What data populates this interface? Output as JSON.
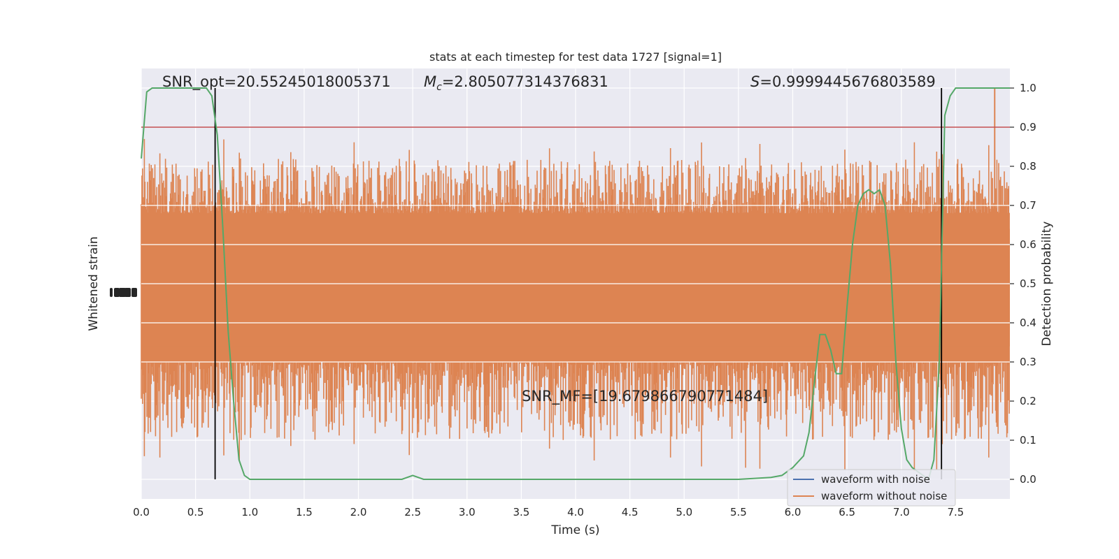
{
  "chart_data": {
    "type": "line",
    "title": "stats at each timestep for test data 1727 [signal=1]",
    "xlabel": "Time (s)",
    "ylabel_left": "Whitened strain",
    "ylabel_right": "Detection probability",
    "xlim": [
      0,
      8
    ],
    "ylim_right": [
      -0.05,
      1.05
    ],
    "x_ticks": [
      "0.0",
      "0.5",
      "1.0",
      "1.5",
      "2.0",
      "2.5",
      "3.0",
      "3.5",
      "4.0",
      "4.5",
      "5.0",
      "5.5",
      "6.0",
      "6.5",
      "7.0",
      "7.5"
    ],
    "y_ticks_right": [
      "0.0",
      "0.1",
      "0.2",
      "0.3",
      "0.4",
      "0.5",
      "0.6",
      "0.7",
      "0.8",
      "0.9",
      "1.0"
    ],
    "grid": true,
    "threshold": 0.9,
    "vlines": [
      0.68,
      7.37
    ],
    "annotations": {
      "snr_opt": "SNR_opt=20.55245018005371",
      "mc_prefix": "M",
      "mc_sub": "c",
      "mc_value": "=2.805077314376831",
      "s_prefix": "S",
      "s_value": "=0.9999445676803589",
      "snr_mf": "SNR_MF=[19.679866790771484]"
    },
    "series": [
      {
        "name": "waveform with noise",
        "color": "#4c72b0",
        "y_range": [
          -0.03,
          0.03
        ]
      },
      {
        "name": "waveform without noise",
        "color": "#dd8452",
        "band_center": 0.47,
        "band_inner": [
          0.3,
          0.68
        ],
        "band_outer": [
          0.1,
          0.82
        ]
      },
      {
        "name": "detection probability",
        "color": "#55a868",
        "x": [
          0.0,
          0.05,
          0.1,
          0.15,
          0.2,
          0.3,
          0.4,
          0.5,
          0.55,
          0.6,
          0.65,
          0.7,
          0.75,
          0.8,
          0.85,
          0.9,
          0.95,
          1.0,
          1.2,
          1.5,
          2.0,
          2.3,
          2.4,
          2.5,
          2.6,
          3.0,
          3.5,
          4.0,
          4.5,
          5.0,
          5.5,
          5.8,
          5.9,
          6.0,
          6.1,
          6.15,
          6.2,
          6.25,
          6.3,
          6.35,
          6.4,
          6.45,
          6.5,
          6.55,
          6.6,
          6.65,
          6.7,
          6.75,
          6.8,
          6.85,
          6.9,
          6.95,
          7.0,
          7.05,
          7.1,
          7.15,
          7.2,
          7.25,
          7.3,
          7.35,
          7.4,
          7.45,
          7.5,
          7.6,
          7.7,
          7.8,
          7.9,
          8.0
        ],
        "y": [
          0.82,
          0.99,
          1.0,
          1.0,
          1.0,
          1.0,
          1.0,
          1.0,
          1.0,
          1.0,
          0.98,
          0.88,
          0.65,
          0.38,
          0.2,
          0.05,
          0.01,
          0.0,
          0.0,
          0.0,
          0.0,
          0.0,
          0.0,
          0.01,
          0.0,
          0.0,
          0.0,
          0.0,
          0.0,
          0.0,
          0.0,
          0.005,
          0.01,
          0.03,
          0.06,
          0.12,
          0.25,
          0.37,
          0.37,
          0.33,
          0.27,
          0.27,
          0.44,
          0.6,
          0.7,
          0.73,
          0.74,
          0.73,
          0.74,
          0.7,
          0.55,
          0.3,
          0.13,
          0.05,
          0.03,
          0.02,
          0.01,
          0.0,
          0.05,
          0.3,
          0.93,
          0.98,
          1.0,
          1.0,
          1.0,
          1.0,
          1.0,
          1.0
        ]
      }
    ],
    "legend_placement": "lower-right"
  },
  "colors": {
    "axes_bg": "#eaeaf2",
    "grid": "#ffffff",
    "threshold_line": "#c44e52",
    "vline": "#000000",
    "text": "#262626"
  }
}
